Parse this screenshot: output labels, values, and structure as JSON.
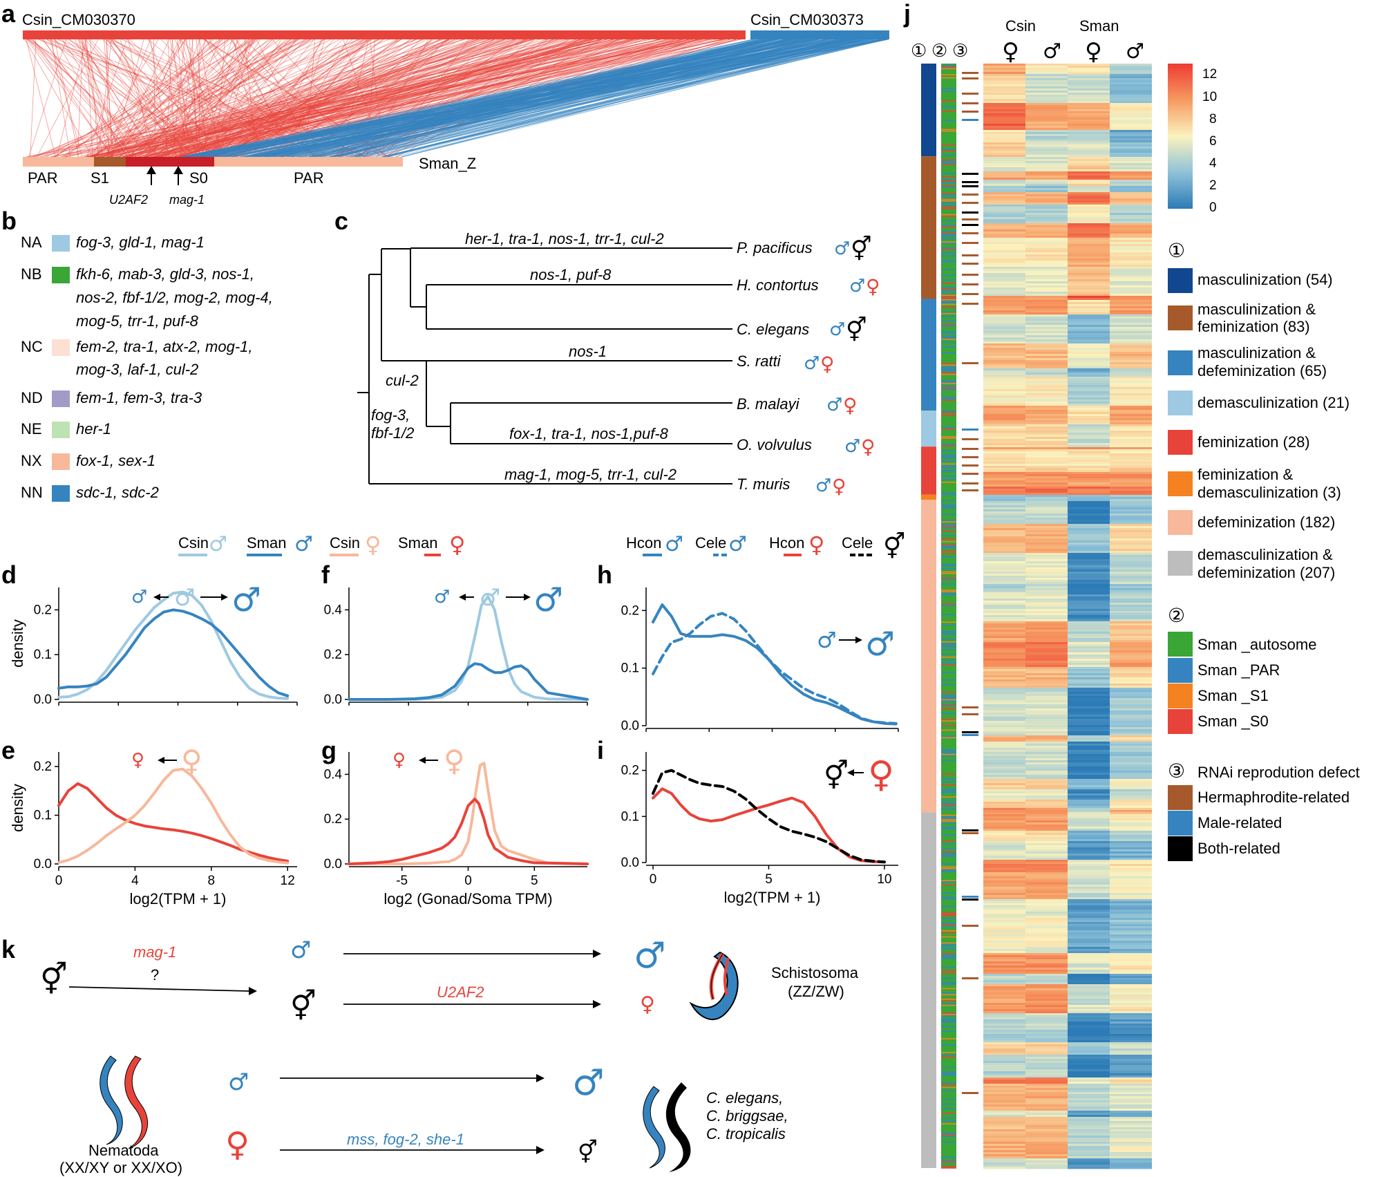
{
  "colors": {
    "red": "#E8433A",
    "blue": "#3584C0",
    "lightblue": "#9EC9E2",
    "peach": "#F7B89B",
    "brown": "#A65A2B",
    "darkred": "#C81E28",
    "navy": "#10478F",
    "green": "#3AA635",
    "lavender": "#A39AC8",
    "palegreen": "#BDE2B3",
    "palepink": "#FCE0D4",
    "gray": "#BDBDBD",
    "orange": "#F58220"
  },
  "symbols": {
    "male": "♂",
    "female": "♀",
    "herm": "⚥"
  },
  "panel_labels": [
    "a",
    "b",
    "c",
    "d",
    "e",
    "f",
    "g",
    "h",
    "i",
    "j",
    "k"
  ],
  "panel_a": {
    "chr_left": "Csin_CM030370",
    "chr_right": "Csin_CM030373",
    "sman": "Sman_Z",
    "regions": [
      "PAR",
      "S1",
      "S0",
      "PAR"
    ],
    "genes": [
      "U2AF2",
      "mag-1"
    ]
  },
  "panel_b": {
    "rows": [
      {
        "code": "NA",
        "color": "#9EC9E2",
        "lines": [
          "fog-3, gld-1, mag-1"
        ]
      },
      {
        "code": "NB",
        "color": "#3AA635",
        "lines": [
          "fkh-6, mab-3, gld-3, nos-1,",
          "nos-2, fbf-1/2, mog-2, mog-4,",
          "mog-5, trr-1, puf-8"
        ]
      },
      {
        "code": "NC",
        "color": "#FCE0D4",
        "lines": [
          "fem-2, tra-1, atx-2, mog-1,",
          "mog-3, laf-1, cul-2"
        ]
      },
      {
        "code": "ND",
        "color": "#A39AC8",
        "lines": [
          "fem-1, fem-3, tra-3"
        ]
      },
      {
        "code": "NE",
        "color": "#BDE2B3",
        "lines": [
          "her-1"
        ]
      },
      {
        "code": "NX",
        "color": "#F7B89B",
        "lines": [
          "fox-1, sex-1"
        ]
      },
      {
        "code": "NN",
        "color": "#3584C0",
        "lines": [
          "sdc-1, sdc-2"
        ]
      }
    ]
  },
  "panel_c": {
    "species": [
      "P. pacificus",
      "H. contortus",
      "C. elegans",
      "S. ratti",
      "B. malayi",
      "O. volvulus",
      "T. muris"
    ],
    "branch_labels": [
      "her-1, tra-1, nos-1, trr-1, cul-2",
      "nos-1, puf-8",
      "nos-1",
      "fox-1, tra-1, nos-1,puf-8",
      "mag-1, mog-5, trr-1, cul-2",
      "cul-2",
      "fog-3,",
      "fbf-1/2"
    ]
  },
  "legend_df": {
    "csin": "Csin",
    "sman": "Sman"
  },
  "legend_hi": {
    "hcon": "Hcon",
    "cele": "Cele"
  },
  "chart_data": [
    {
      "panel": "d",
      "type": "line",
      "ylabel": "density",
      "xlim": [
        0,
        12.5
      ],
      "ylim": [
        0,
        0.25
      ],
      "yticks": [
        0.0,
        0.1,
        0.2
      ],
      "yticklabels": [
        "0.0",
        "0.1",
        "0.2"
      ],
      "series": [
        {
          "name": "Csin ♂",
          "color": "#9EC9E2",
          "dash": false,
          "x": [
            0,
            0.5,
            1,
            1.5,
            2,
            2.5,
            3,
            3.5,
            4,
            4.5,
            5,
            5.5,
            6,
            6.5,
            7,
            7.5,
            8,
            8.5,
            9,
            9.5,
            10,
            10.5,
            11,
            11.5,
            12
          ],
          "y": [
            0.005,
            0.006,
            0.012,
            0.022,
            0.04,
            0.065,
            0.095,
            0.125,
            0.155,
            0.18,
            0.205,
            0.222,
            0.237,
            0.24,
            0.232,
            0.21,
            0.175,
            0.13,
            0.085,
            0.05,
            0.025,
            0.012,
            0.006,
            0.003,
            0.002
          ]
        },
        {
          "name": "Sman ♂",
          "color": "#3584C0",
          "dash": false,
          "x": [
            0,
            0.5,
            1,
            1.5,
            2,
            2.5,
            3,
            3.5,
            4,
            4.5,
            5,
            5.5,
            6,
            6.5,
            7,
            7.5,
            8,
            8.5,
            9,
            9.5,
            10,
            10.5,
            11,
            11.5,
            12
          ],
          "y": [
            0.025,
            0.028,
            0.028,
            0.03,
            0.035,
            0.05,
            0.075,
            0.1,
            0.13,
            0.16,
            0.18,
            0.195,
            0.2,
            0.197,
            0.19,
            0.18,
            0.168,
            0.15,
            0.125,
            0.1,
            0.075,
            0.05,
            0.03,
            0.015,
            0.008
          ]
        }
      ]
    },
    {
      "panel": "e",
      "type": "line",
      "ylabel": "density",
      "xlabel": "log2(TPM + 1)",
      "xlim": [
        0,
        12.5
      ],
      "ylim": [
        0,
        0.23
      ],
      "xticks": [
        0,
        4,
        8,
        12
      ],
      "xticklabels": [
        "0",
        "4",
        "8",
        "12"
      ],
      "yticks": [
        0.0,
        0.1,
        0.2
      ],
      "yticklabels": [
        "0.0",
        "0.1",
        "0.2"
      ],
      "series": [
        {
          "name": "Sman ♀",
          "color": "#E8433A",
          "dash": false,
          "x": [
            0,
            0.5,
            1,
            1.5,
            2,
            2.5,
            3,
            3.5,
            4,
            4.5,
            5,
            5.5,
            6,
            6.5,
            7,
            7.5,
            8,
            8.5,
            9,
            9.5,
            10,
            10.5,
            11,
            11.5,
            12
          ],
          "y": [
            0.12,
            0.15,
            0.165,
            0.155,
            0.135,
            0.115,
            0.1,
            0.09,
            0.083,
            0.078,
            0.075,
            0.072,
            0.07,
            0.067,
            0.063,
            0.058,
            0.052,
            0.045,
            0.038,
            0.03,
            0.024,
            0.018,
            0.013,
            0.009,
            0.006
          ]
        },
        {
          "name": "Csin ♀",
          "color": "#F7B89B",
          "dash": false,
          "x": [
            0,
            0.5,
            1,
            1.5,
            2,
            2.5,
            3,
            3.5,
            4,
            4.5,
            5,
            5.5,
            6,
            6.5,
            7,
            7.5,
            8,
            8.5,
            9,
            9.5,
            10,
            10.5,
            11,
            11.5,
            12
          ],
          "y": [
            0.003,
            0.008,
            0.016,
            0.028,
            0.042,
            0.058,
            0.072,
            0.085,
            0.1,
            0.12,
            0.145,
            0.172,
            0.192,
            0.195,
            0.18,
            0.155,
            0.125,
            0.09,
            0.06,
            0.035,
            0.02,
            0.012,
            0.007,
            0.004,
            0.002
          ]
        }
      ]
    },
    {
      "panel": "f",
      "type": "line",
      "xlim": [
        -9,
        9
      ],
      "ylim": [
        0,
        0.5
      ],
      "yticks": [
        0.0,
        0.2,
        0.4
      ],
      "yticklabels": [
        "0.0",
        "0.2",
        "0.4"
      ],
      "series": [
        {
          "name": "Csin ♂",
          "color": "#9EC9E2",
          "dash": false,
          "x": [
            -9,
            -6,
            -4,
            -3,
            -2,
            -1,
            -0.5,
            0,
            0.5,
            1,
            1.5,
            2,
            2.5,
            3,
            3.5,
            4,
            5,
            6,
            9
          ],
          "y": [
            0,
            0,
            0,
            0.003,
            0.01,
            0.04,
            0.08,
            0.15,
            0.28,
            0.42,
            0.46,
            0.4,
            0.26,
            0.14,
            0.07,
            0.035,
            0.01,
            0.002,
            0
          ]
        },
        {
          "name": "Sman ♂",
          "color": "#3584C0",
          "dash": false,
          "x": [
            -9,
            -6,
            -4,
            -3,
            -2,
            -1,
            -0.5,
            0,
            0.5,
            1,
            1.5,
            2,
            2.5,
            3,
            3.5,
            4,
            4.5,
            5,
            6,
            9
          ],
          "y": [
            0,
            0,
            0.003,
            0.008,
            0.02,
            0.06,
            0.1,
            0.14,
            0.16,
            0.155,
            0.135,
            0.12,
            0.12,
            0.13,
            0.145,
            0.15,
            0.13,
            0.09,
            0.03,
            0
          ]
        }
      ]
    },
    {
      "panel": "g",
      "type": "line",
      "xlabel": "log2 (Gonad/Soma TPM)",
      "xlim": [
        -9,
        9
      ],
      "ylim": [
        0,
        0.5
      ],
      "xticks": [
        -5,
        0,
        5
      ],
      "xticklabels": [
        "-5",
        "0",
        "5"
      ],
      "yticks": [
        0.0,
        0.2,
        0.4
      ],
      "yticklabels": [
        "0.0",
        "0.2",
        "0.4"
      ],
      "series": [
        {
          "name": "Csin ♀",
          "color": "#F7B89B",
          "dash": false,
          "x": [
            -9,
            -5,
            -3,
            -2,
            -1.5,
            -1,
            -0.5,
            0,
            0.3,
            0.6,
            0.9,
            1.2,
            1.5,
            2,
            2.5,
            3,
            4,
            5,
            6,
            9
          ],
          "y": [
            0,
            0,
            0.003,
            0.008,
            0.01,
            0.02,
            0.04,
            0.1,
            0.2,
            0.33,
            0.44,
            0.45,
            0.33,
            0.15,
            0.08,
            0.06,
            0.04,
            0.02,
            0.005,
            0
          ]
        },
        {
          "name": "Sman ♀",
          "color": "#E8433A",
          "dash": false,
          "x": [
            -9,
            -7,
            -6,
            -5,
            -4,
            -3,
            -2,
            -1.5,
            -1,
            -0.5,
            0,
            0.5,
            0.8,
            1.2,
            1.5,
            2,
            3,
            4,
            5,
            9
          ],
          "y": [
            0,
            0.005,
            0.01,
            0.02,
            0.035,
            0.05,
            0.07,
            0.09,
            0.12,
            0.18,
            0.26,
            0.29,
            0.27,
            0.2,
            0.13,
            0.07,
            0.03,
            0.015,
            0.005,
            0
          ]
        }
      ]
    },
    {
      "panel": "h",
      "type": "line",
      "xlim": [
        -0.3,
        10.6
      ],
      "ylim": [
        0,
        0.24
      ],
      "yticks": [
        0.0,
        0.1,
        0.2
      ],
      "yticklabels": [
        "0.0",
        "0.1",
        "0.2"
      ],
      "series": [
        {
          "name": "Hcon ♂",
          "color": "#3584C0",
          "dash": false,
          "x": [
            0,
            0.4,
            0.8,
            1.2,
            1.6,
            2,
            2.5,
            3,
            3.5,
            4,
            4.5,
            5,
            5.5,
            6,
            6.5,
            7,
            7.5,
            8,
            8.5,
            9,
            9.5,
            10,
            10.5
          ],
          "y": [
            0.18,
            0.21,
            0.19,
            0.16,
            0.155,
            0.155,
            0.155,
            0.158,
            0.155,
            0.148,
            0.135,
            0.115,
            0.09,
            0.07,
            0.055,
            0.045,
            0.04,
            0.032,
            0.022,
            0.012,
            0.007,
            0.004,
            0.003
          ]
        },
        {
          "name": "Cele ♂",
          "color": "#3584C0",
          "dash": true,
          "x": [
            0,
            0.4,
            0.8,
            1.2,
            1.6,
            2,
            2.5,
            3,
            3.5,
            4,
            4.5,
            5,
            5.5,
            6,
            6.5,
            7,
            7.5,
            8,
            8.5,
            9,
            9.5,
            10,
            10.5
          ],
          "y": [
            0.09,
            0.12,
            0.145,
            0.15,
            0.16,
            0.175,
            0.19,
            0.195,
            0.185,
            0.165,
            0.14,
            0.115,
            0.095,
            0.08,
            0.065,
            0.055,
            0.048,
            0.038,
            0.025,
            0.013,
            0.007,
            0.005,
            0.004
          ]
        }
      ]
    },
    {
      "panel": "i",
      "type": "line",
      "xlabel": "log2(TPM + 1)",
      "xlim": [
        -0.3,
        10.6
      ],
      "ylim": [
        0,
        0.24
      ],
      "xticks": [
        0,
        5,
        10
      ],
      "xticklabels": [
        "0",
        "5",
        "10"
      ],
      "yticks": [
        0.0,
        0.1,
        0.2
      ],
      "yticklabels": [
        "0.0",
        "0.1",
        "0.2"
      ],
      "series": [
        {
          "name": "Hcon ♀",
          "color": "#E8433A",
          "dash": false,
          "x": [
            0,
            0.4,
            0.8,
            1.2,
            1.6,
            2,
            2.5,
            3,
            3.5,
            4,
            4.5,
            5,
            5.5,
            6,
            6.5,
            7,
            7.5,
            8,
            8.5,
            9,
            9.5,
            10
          ],
          "y": [
            0.14,
            0.16,
            0.15,
            0.125,
            0.105,
            0.095,
            0.09,
            0.093,
            0.102,
            0.11,
            0.118,
            0.125,
            0.133,
            0.14,
            0.13,
            0.1,
            0.06,
            0.03,
            0.012,
            0.004,
            0.002,
            0.001
          ]
        },
        {
          "name": "Cele ⚥",
          "color": "#000000",
          "dash": true,
          "x": [
            0,
            0.4,
            0.8,
            1.2,
            1.6,
            2,
            2.5,
            3,
            3.5,
            4,
            4.5,
            5,
            5.5,
            6,
            6.5,
            7,
            7.5,
            8,
            8.5,
            9,
            9.5,
            10
          ],
          "y": [
            0.15,
            0.195,
            0.2,
            0.19,
            0.18,
            0.172,
            0.168,
            0.165,
            0.155,
            0.138,
            0.115,
            0.095,
            0.078,
            0.068,
            0.062,
            0.055,
            0.045,
            0.03,
            0.015,
            0.006,
            0.003,
            0.001
          ]
        }
      ]
    },
    {
      "panel": "j",
      "type": "heatmap",
      "columns_group": [
        "Csin",
        "Sman"
      ],
      "columns": [
        "♀",
        "♂",
        "♀",
        "♂"
      ],
      "scale_ticks": [
        12,
        10,
        8,
        6,
        4,
        2,
        0
      ],
      "value_range": [
        0,
        12
      ],
      "track_labels": [
        "①",
        "②",
        "③"
      ]
    }
  ],
  "legend_j": {
    "scale_ticks": [
      "12",
      "10",
      "8",
      "6",
      "4",
      "2",
      "0"
    ],
    "group1_header": "①",
    "group1": [
      {
        "color": "#10478F",
        "lines": [
          "masculinization (54)"
        ]
      },
      {
        "color": "#A65A2B",
        "lines": [
          "masculinization &",
          "feminization (83)"
        ]
      },
      {
        "color": "#3584C0",
        "lines": [
          "masculinization &",
          "defeminization (65)"
        ]
      },
      {
        "color": "#9EC9E2",
        "lines": [
          "demasculinization (21)"
        ]
      },
      {
        "color": "#E8433A",
        "lines": [
          "feminization (28)"
        ]
      },
      {
        "color": "#F58220",
        "lines": [
          "feminization &",
          "demasculinization (3)"
        ]
      },
      {
        "color": "#F7B89B",
        "lines": [
          "defeminization (182)"
        ]
      },
      {
        "color": "#BDBDBD",
        "lines": [
          "demasculinization &",
          "defeminization (207)"
        ]
      }
    ],
    "group2_header": "②",
    "group2": [
      {
        "color": "#3AA635",
        "label": "Sman _autosome"
      },
      {
        "color": "#3584C0",
        "label": "Sman _PAR"
      },
      {
        "color": "#F58220",
        "label": "Sman _S1"
      },
      {
        "color": "#E8433A",
        "label": "Sman _S0"
      }
    ],
    "group3_header": "③",
    "group3_title": "RNAi reprodution defect",
    "group3": [
      {
        "color": "#A65A2B",
        "label": "Hermaphrodite-related"
      },
      {
        "color": "#3584C0",
        "label": "Male-related"
      },
      {
        "color": "#000000",
        "label": "Both-related"
      }
    ]
  },
  "panel_k": {
    "mag1": "mag-1",
    "question": "?",
    "u2af2": "U2AF2",
    "schisto_name": "Schistosoma",
    "schisto_sys": "(ZZ/ZW)",
    "nem_genes": "mss, fog-2, she-1",
    "nematoda": "Nematoda",
    "nem_sys": "(XX/XY or XX/XO)",
    "species": [
      "C. elegans,",
      "C. briggsae,",
      "C. tropicalis"
    ]
  }
}
